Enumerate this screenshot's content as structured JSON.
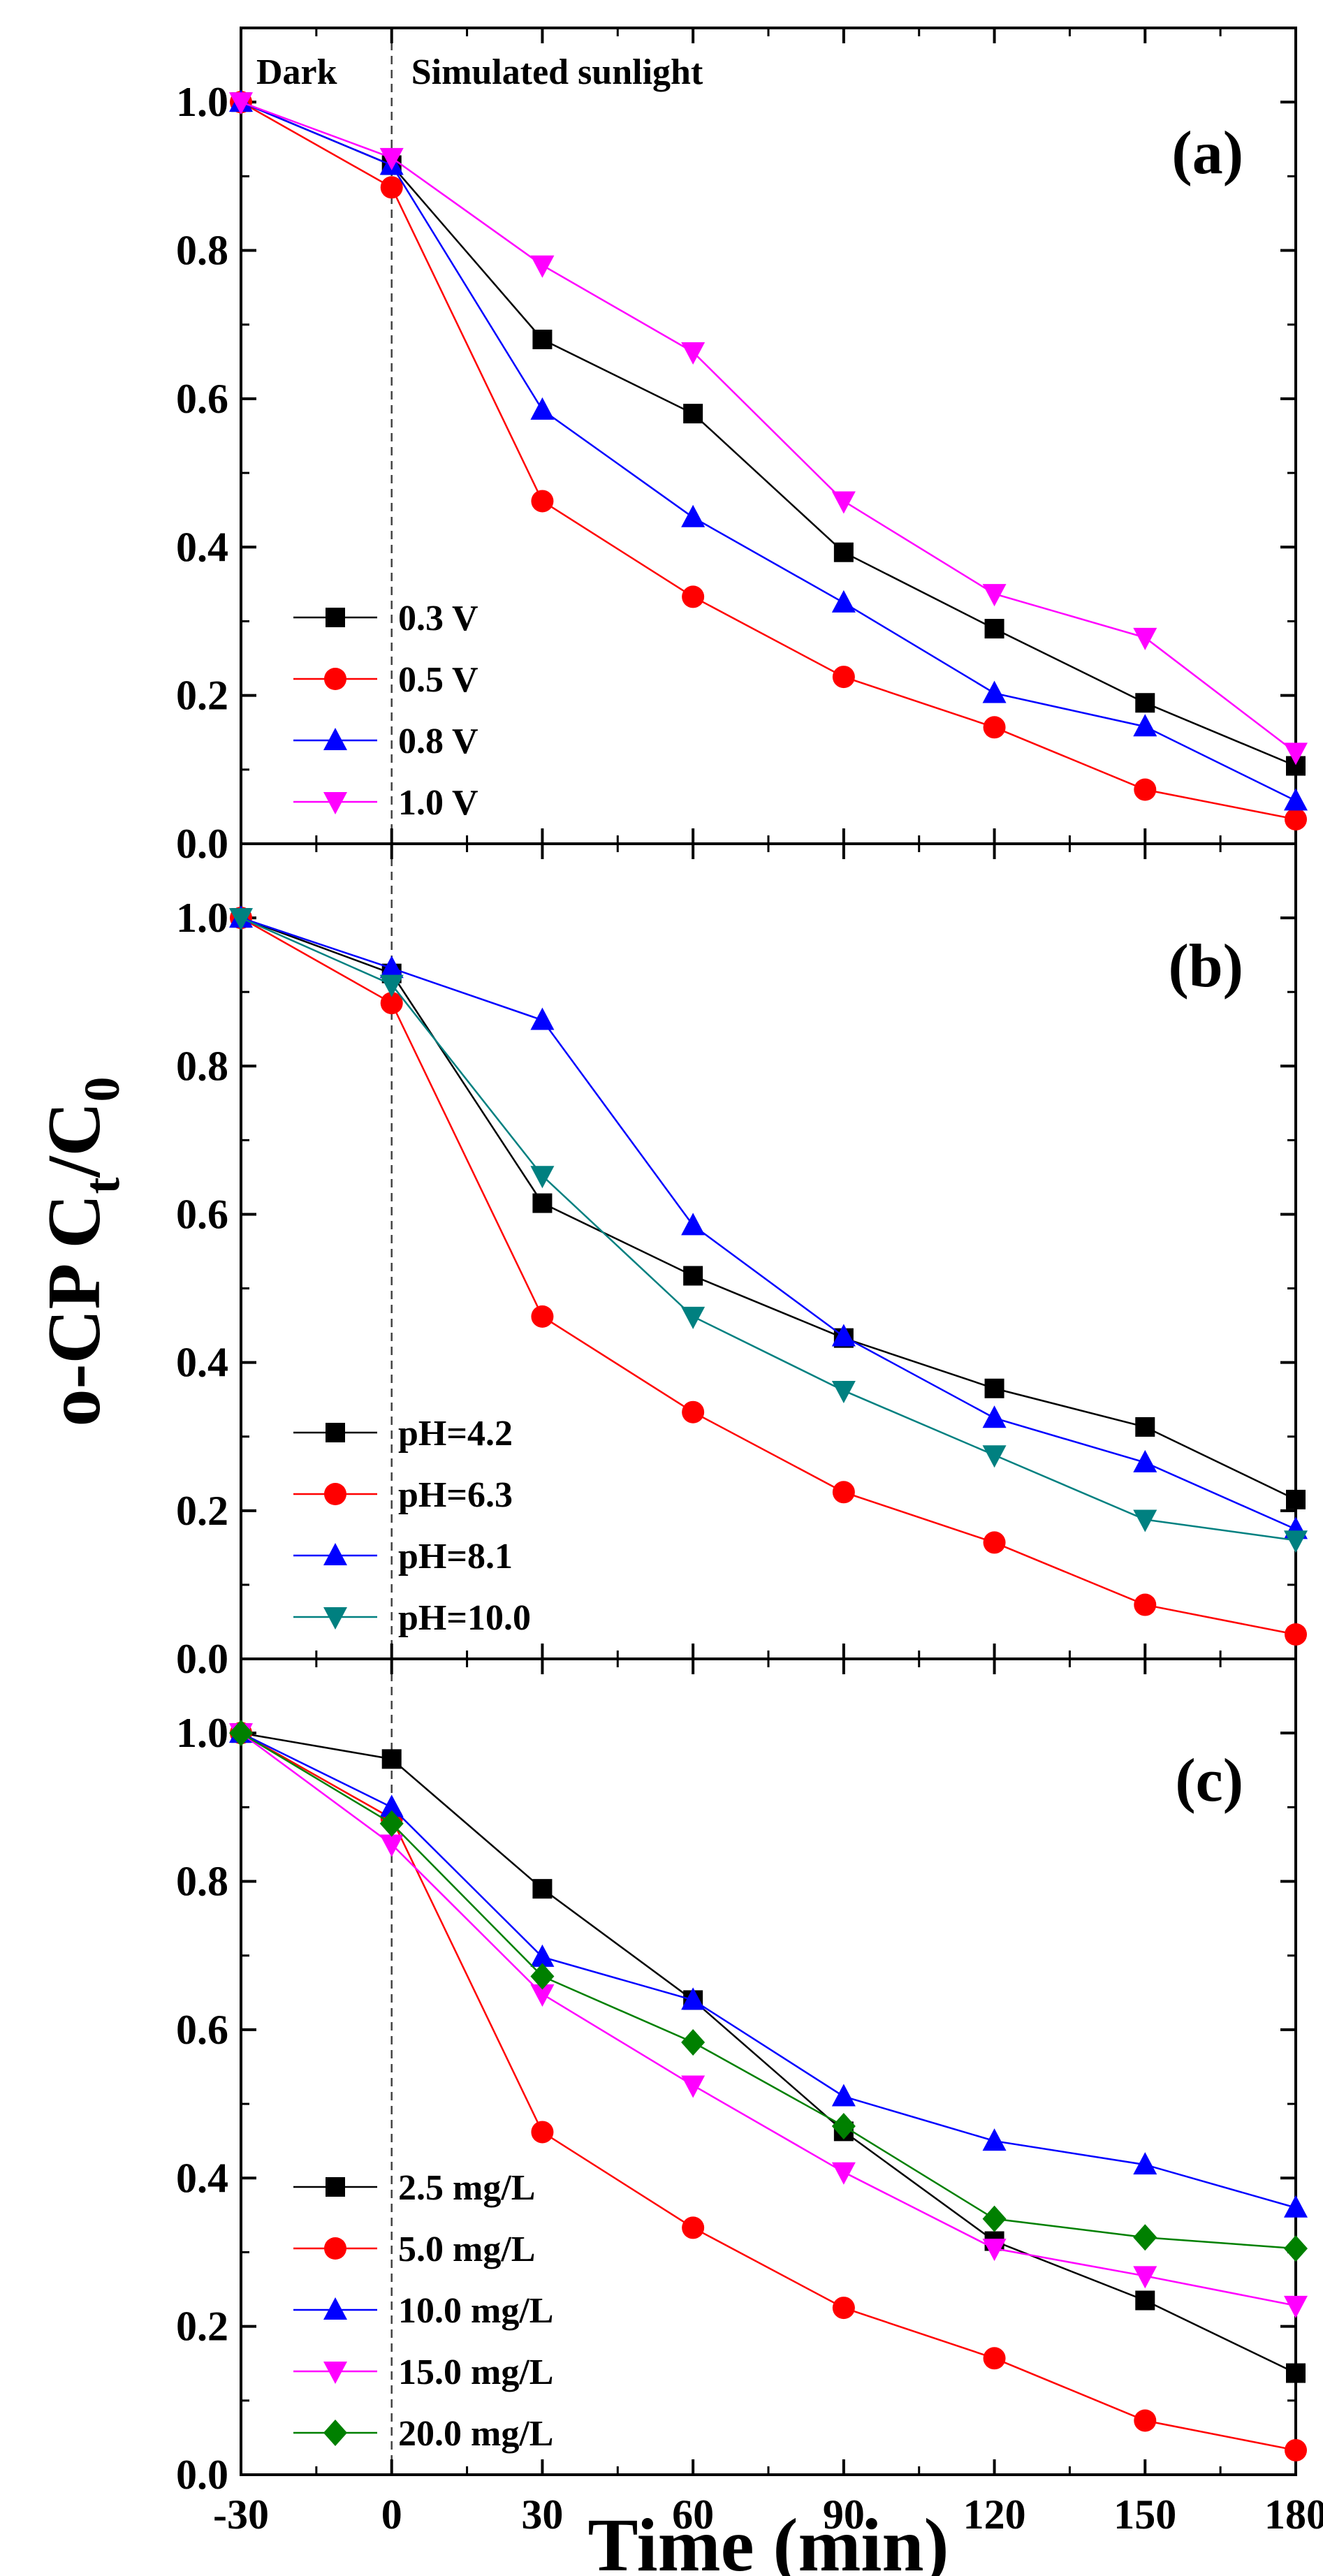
{
  "chart_data": {
    "type": "line",
    "xlabel": "Time (min)",
    "ylabel": {
      "main": "o-CP C",
      "sub1": "t",
      "mid": "/C",
      "sub2": "0"
    },
    "x_ticks": [
      -30,
      0,
      30,
      60,
      90,
      120,
      150,
      180
    ],
    "xlim": [
      -30,
      180
    ],
    "ylim": [
      0.0,
      1.1
    ],
    "y_ticks": [
      0.0,
      0.2,
      0.4,
      0.6,
      0.8,
      1.0
    ],
    "annotations": {
      "dark": "Dark",
      "light": "Simulated sunlight"
    },
    "panels": [
      {
        "label": "(a)",
        "series": [
          {
            "name": "0.3 V",
            "color": "#000000",
            "marker": "square",
            "x": [
              -30,
              0,
              30,
              60,
              90,
              120,
              150,
              180
            ],
            "values": [
              1.0,
              0.915,
              0.68,
              0.58,
              0.393,
              0.29,
              0.19,
              0.105
            ]
          },
          {
            "name": "0.5 V",
            "color": "#ff0000",
            "marker": "circle",
            "x": [
              -30,
              0,
              30,
              60,
              90,
              120,
              150,
              180
            ],
            "values": [
              1.0,
              0.885,
              0.462,
              0.333,
              0.225,
              0.157,
              0.073,
              0.033
            ]
          },
          {
            "name": "0.8 V",
            "color": "#0000ff",
            "marker": "triangle-up",
            "x": [
              -30,
              0,
              30,
              60,
              90,
              120,
              150,
              180
            ],
            "values": [
              1.0,
              0.915,
              0.585,
              0.44,
              0.325,
              0.203,
              0.158,
              0.058
            ]
          },
          {
            "name": "1.0 V",
            "color": "#ff00ff",
            "marker": "triangle-down",
            "x": [
              -30,
              0,
              30,
              60,
              90,
              120,
              150,
              180
            ],
            "values": [
              1.0,
              0.925,
              0.78,
              0.663,
              0.462,
              0.337,
              0.278,
              0.123
            ]
          }
        ]
      },
      {
        "label": "(b)",
        "series": [
          {
            "name": "pH=4.2",
            "color": "#000000",
            "marker": "square",
            "x": [
              -30,
              0,
              30,
              60,
              90,
              120,
              150,
              180
            ],
            "values": [
              1.0,
              0.925,
              0.615,
              0.517,
              0.433,
              0.365,
              0.313,
              0.215
            ]
          },
          {
            "name": "pH=6.3",
            "color": "#ff0000",
            "marker": "circle",
            "x": [
              -30,
              0,
              30,
              60,
              90,
              120,
              150,
              180
            ],
            "values": [
              1.0,
              0.885,
              0.462,
              0.333,
              0.225,
              0.157,
              0.073,
              0.033
            ]
          },
          {
            "name": "pH=8.1",
            "color": "#0000ff",
            "marker": "triangle-up",
            "x": [
              -30,
              0,
              30,
              60,
              90,
              120,
              150,
              180
            ],
            "values": [
              1.0,
              0.932,
              0.862,
              0.585,
              0.435,
              0.325,
              0.265,
              0.175
            ]
          },
          {
            "name": "pH=10.0",
            "color": "#008080",
            "marker": "triangle-down",
            "x": [
              -30,
              0,
              30,
              60,
              90,
              120,
              150,
              180
            ],
            "values": [
              1.0,
              0.91,
              0.652,
              0.462,
              0.362,
              0.275,
              0.188,
              0.16
            ]
          }
        ]
      },
      {
        "label": "(c)",
        "series": [
          {
            "name": "2.5 mg/L",
            "color": "#000000",
            "marker": "square",
            "x": [
              -30,
              0,
              30,
              60,
              90,
              120,
              150,
              180
            ],
            "values": [
              1.0,
              0.965,
              0.79,
              0.64,
              0.463,
              0.315,
              0.235,
              0.137
            ]
          },
          {
            "name": "5.0 mg/L",
            "color": "#ff0000",
            "marker": "circle",
            "x": [
              -30,
              0,
              30,
              60,
              90,
              120,
              150,
              180
            ],
            "values": [
              1.0,
              0.885,
              0.462,
              0.333,
              0.225,
              0.157,
              0.073,
              0.033
            ]
          },
          {
            "name": "10.0 mg/L",
            "color": "#0000ff",
            "marker": "triangle-up",
            "x": [
              -30,
              0,
              30,
              60,
              90,
              120,
              150,
              180
            ],
            "values": [
              1.0,
              0.9,
              0.698,
              0.64,
              0.51,
              0.45,
              0.418,
              0.36
            ]
          },
          {
            "name": "15.0 mg/L",
            "color": "#ff00ff",
            "marker": "triangle-down",
            "x": [
              -30,
              0,
              30,
              60,
              90,
              120,
              150,
              180
            ],
            "values": [
              1.0,
              0.85,
              0.648,
              0.525,
              0.408,
              0.305,
              0.268,
              0.228
            ]
          },
          {
            "name": "20.0 mg/L",
            "color": "#008000",
            "marker": "diamond",
            "x": [
              -30,
              0,
              30,
              60,
              90,
              120,
              150,
              180
            ],
            "values": [
              1.0,
              0.878,
              0.672,
              0.583,
              0.47,
              0.345,
              0.32,
              0.305
            ]
          }
        ]
      }
    ]
  }
}
